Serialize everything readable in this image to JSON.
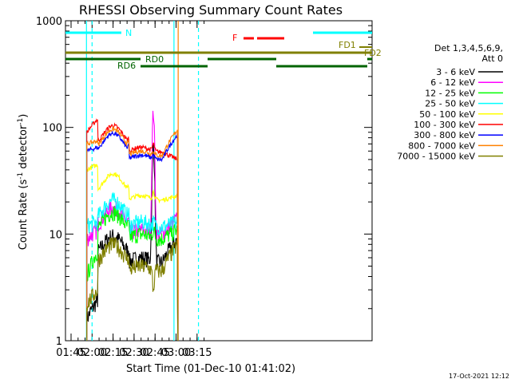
{
  "chart_data": {
    "type": "line",
    "title": "RHESSI Observing Summary Count Rates",
    "xlabel": "Start Time (01-Dec-10 01:41:02)",
    "ylabel_main": "Count Rate (s",
    "ylabel_sup1": "-1",
    "ylabel_mid": " detector",
    "ylabel_sup2": "-1",
    "ylabel_end": ")",
    "yscale": "log",
    "ylim": [
      1,
      1000
    ],
    "xlim_minutes": [
      101.0,
      320.0
    ],
    "x_ticks": [
      {
        "m": 105,
        "label": "01:45"
      },
      {
        "m": 120,
        "label": "02:00"
      },
      {
        "m": 135,
        "label": "02:15"
      },
      {
        "m": 150,
        "label": "02:30"
      },
      {
        "m": 165,
        "label": "02:45"
      },
      {
        "m": 180,
        "label": "03:00"
      },
      {
        "m": 195,
        "label": "03:15"
      }
    ],
    "y_ticks": [
      {
        "v": 1,
        "label": "1"
      },
      {
        "v": 10,
        "label": "10"
      },
      {
        "v": 100,
        "label": "100"
      },
      {
        "v": 1000,
        "label": "1000"
      }
    ],
    "legend_title": "Det 1,3,4,5,6,9,",
    "legend_subtitle": "Att 0",
    "series": [
      {
        "name": "3 - 6 keV",
        "color": "#000000",
        "base": 6,
        "seg1": [
          1.6,
          2.4
        ],
        "peak": 70,
        "end": 9
      },
      {
        "name": "6 - 12 keV",
        "color": "#ff00ff",
        "base": 11,
        "seg1": [
          9,
          11
        ],
        "peak": 140,
        "end": 14
      },
      {
        "name": "12 - 25 keV",
        "color": "#00ff00",
        "base": 10,
        "seg1": [
          4,
          7
        ],
        "peak": 11,
        "end": 11
      },
      {
        "name": "25 - 50 keV",
        "color": "#00ffff",
        "base": 13,
        "seg1": [
          12,
          13
        ],
        "peak": 13,
        "end": 13
      },
      {
        "name": "50 - 100 keV",
        "color": "#ffff00",
        "base": 23,
        "seg1": [
          40,
          45
        ],
        "peak": 25,
        "end": 23
      },
      {
        "name": "100 - 300 keV",
        "color": "#ff0000",
        "base": 65,
        "seg1": [
          90,
          120
        ],
        "peak": 70,
        "end": 50
      },
      {
        "name": "300 - 800 keV",
        "color": "#0000ff",
        "base": 55,
        "seg1": [
          60,
          65
        ],
        "peak": 55,
        "end": 85
      },
      {
        "name": "800 - 7000 keV",
        "color": "#ff8000",
        "base": 60,
        "seg1": [
          70,
          75
        ],
        "peak": 60,
        "end": 95
      },
      {
        "name": "7000 - 15000 keV",
        "color": "#808000",
        "base": 5,
        "seg1": [
          2.2,
          3
        ],
        "peak": 3,
        "end": 8
      }
    ],
    "flag_labels": {
      "n": "N",
      "f": "F",
      "fd1": "FD1",
      "fd2": "FD2",
      "rd0": "RD0",
      "rd6": "RD6"
    },
    "vlines_minutes": [
      {
        "m": 116.0,
        "color": "#00ffff"
      },
      {
        "m": 120.0,
        "color": "#00ffff",
        "dash": true
      },
      {
        "m": 178.5,
        "color": "#00ffff"
      },
      {
        "m": 181.5,
        "color": "#ff8000"
      },
      {
        "m": 196.0,
        "color": "#00ffff",
        "dash": true
      }
    ],
    "footer": "17-Oct-2021 12:12",
    "grid": false,
    "legend_position": "right"
  }
}
